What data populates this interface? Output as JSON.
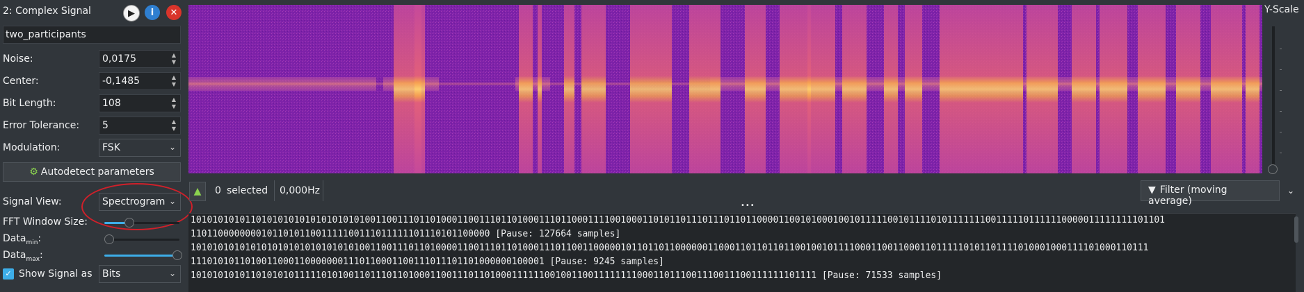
{
  "header": {
    "title": "2:  Complex Signal"
  },
  "icons": {
    "play": "play-icon",
    "info": "info-icon",
    "close": "close-icon"
  },
  "signal_name": "two_participants",
  "fields": [
    {
      "label": "Noise:",
      "value": "0,0175"
    },
    {
      "label": "Center:",
      "value": "-0,1485"
    },
    {
      "label": "Bit Length:",
      "value": "108"
    },
    {
      "label": "Error Tolerance:",
      "value": "5"
    }
  ],
  "modulation": {
    "label": "Modulation:",
    "value": "FSK"
  },
  "autodetect_label": "Autodetect parameters",
  "signal_view": {
    "label": "Signal View:",
    "value": "Spectrogram"
  },
  "fft": {
    "label": "FFT Window Size:",
    "level": 0.32
  },
  "data_min": {
    "label": "Data",
    "sub": "min",
    "suffix": ":",
    "level": 0.0
  },
  "data_max": {
    "label": "Data",
    "sub": "max",
    "suffix": ":",
    "level": 1.0
  },
  "show_signal": {
    "label": "Show Signal as",
    "value": "Bits",
    "checked": true
  },
  "toolbar": {
    "selected_count": "0",
    "selected_label": "selected",
    "frequency": "0,000Hz",
    "filter_label": "Filter (moving average)"
  },
  "yscale_label": "Y-Scale",
  "bits": [
    "10101010101101010101010101010101001100111011010001100111011010001110110001111001000110101101110111011011000011001010001001011111001011110101111111001111101111110000011111111101101",
    "1101100000000101101011001111100111011111101110101100000 [Pause: 127664 samples]",
    "10101010101010101010101010101010011001110110100001100111011010001110110011000001011011011000000110001101101101100100101111000110011000110111110101101111010001000111101000110111",
    "11101010110100110001100000001110110001100111011101101000000100001 [Pause: 9245 samples]",
    "1010101010110101010111110101001101110110100011001110110100011111100100110011111111000110111001110011100111111101111 [Pause: 71533 samples]"
  ],
  "colors": {
    "spectrogram_bg": "#7a1fa8",
    "burst": "#f07a5a",
    "carrier": "#ffd27a",
    "accent": "#3daee9"
  }
}
